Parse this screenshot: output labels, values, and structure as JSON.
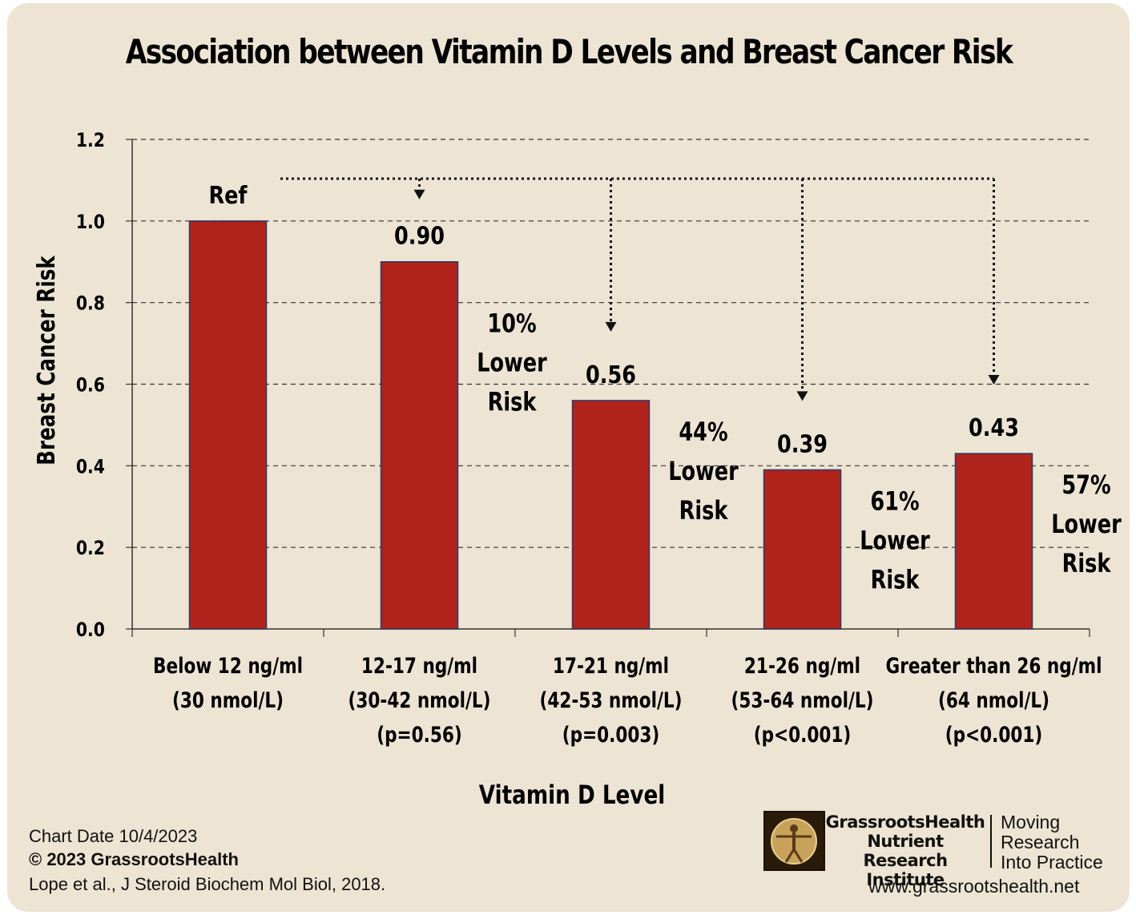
{
  "chart_data": {
    "type": "bar",
    "title": "Association between Vitamin D Levels and Breast Cancer Risk",
    "xlabel": "Vitamin D Level",
    "ylabel": "Breast Cancer Risk",
    "ylim": [
      0,
      1.2
    ],
    "yticks": [
      "0.0",
      "0.2",
      "0.4",
      "0.6",
      "0.8",
      "1.0",
      "1.2"
    ],
    "grid": true,
    "bar_color": "#b0231a",
    "categories": [
      [
        "Below 12 ng/ml",
        "(30 nmol/L)"
      ],
      [
        "12-17 ng/ml",
        "(30-42 nmol/L)",
        "(p=0.56)"
      ],
      [
        "17-21 ng/ml",
        "(42-53 nmol/L)",
        "(p=0.003)"
      ],
      [
        "21-26 ng/ml",
        "(53-64 nmol/L)",
        "(p<0.001)"
      ],
      [
        "Greater than 26 ng/ml",
        "(64 nmol/L)",
        "(p<0.001)"
      ]
    ],
    "values": [
      1.0,
      0.9,
      0.56,
      0.39,
      0.43
    ],
    "data_labels": [
      "Ref",
      "0.90",
      "0.56",
      "0.39",
      "0.43"
    ],
    "annotations": [
      null,
      [
        "10%",
        "Lower",
        "Risk"
      ],
      [
        "44%",
        "Lower",
        "Risk"
      ],
      [
        "61%",
        "Lower",
        "Risk"
      ],
      [
        "57%",
        "Lower",
        "Risk"
      ]
    ]
  },
  "footer": {
    "chart_date": "Chart Date 10/4/2023",
    "copyright": "© 2023 GrassrootsHealth",
    "citation": "Lope et al., J Steroid Biochem Mol Biol, 2018.",
    "org_line1": "GrassrootsHealth",
    "org_line2": "Nutrient",
    "org_line3": "Research Institute",
    "tagline1": "Moving",
    "tagline2": "Research",
    "tagline3": "Into Practice",
    "url": "www.grassrootshealth.net"
  }
}
